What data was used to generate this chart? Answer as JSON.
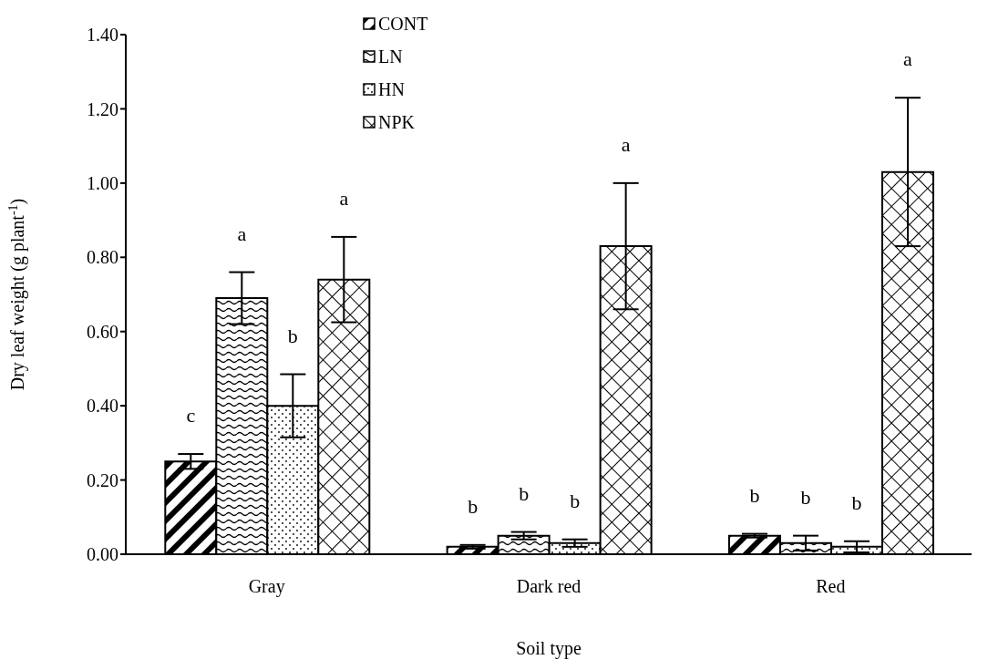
{
  "chart_data": {
    "type": "bar",
    "xlabel": "Soil type",
    "ylabel": "Dry leaf weight (g plant$^{-1}$)",
    "categories": [
      "Gray",
      "Dark red",
      "Red"
    ],
    "series": [
      {
        "name": "CONT",
        "color": "#000000",
        "values": [
          0.25,
          0.02,
          0.05
        ],
        "errors": [
          0.02,
          0.005,
          0.005
        ]
      },
      {
        "name": "LN",
        "color": "#000000",
        "values": [
          0.69,
          0.05,
          0.03
        ],
        "errors": [
          0.07,
          0.01,
          0.02
        ]
      },
      {
        "name": "HN",
        "color": "#000000",
        "values": [
          0.4,
          0.03,
          0.02
        ],
        "errors": [
          0.085,
          0.01,
          0.015
        ]
      },
      {
        "name": "NPK",
        "color": "#000000",
        "values": [
          0.74,
          0.83,
          1.03
        ],
        "errors": [
          0.115,
          0.17,
          0.2
        ]
      }
    ],
    "ylim": [
      0,
      1.4
    ],
    "yticks": [
      {
        "value": 0,
        "label": "0.00"
      },
      {
        "value": 0.2,
        "label": "0.20"
      },
      {
        "value": 0.4,
        "label": "0.40"
      },
      {
        "value": 0.6,
        "label": "0.60"
      },
      {
        "value": 0.8,
        "label": "0.80"
      },
      {
        "value": 1,
        "label": "1.00"
      },
      {
        "value": 1.2,
        "label": "1.20"
      },
      {
        "value": 1.4,
        "label": "1.40"
      }
    ],
    "legend": "top",
    "annotations": [
      "c",
      "a",
      "b",
      "a",
      "b",
      "b",
      "b",
      "a",
      "b",
      "b",
      "b",
      "a"
    ]
  }
}
